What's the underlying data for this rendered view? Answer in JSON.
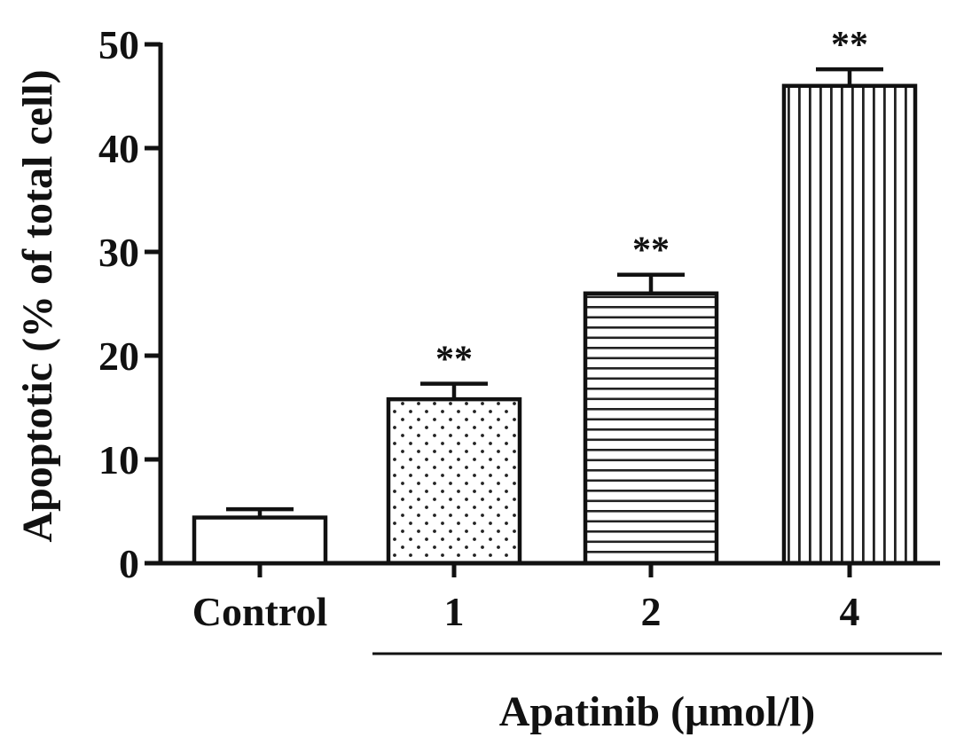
{
  "chart_data": {
    "type": "bar",
    "categories": [
      "Control",
      "1",
      "2",
      "4"
    ],
    "values": [
      4.4,
      15.8,
      26.0,
      46.0
    ],
    "errors": [
      0.8,
      1.5,
      1.8,
      1.6
    ],
    "significance": [
      "",
      "**",
      "**",
      "**"
    ],
    "fill_patterns": [
      "none",
      "dots",
      "horizontal-lines",
      "vertical-lines"
    ],
    "ylabel": "Apoptotic (% of total cell)",
    "xlabel": "",
    "group_label": "Apatinib (μmol/l)",
    "yticks": [
      "0",
      "10",
      "20",
      "30",
      "40",
      "50"
    ],
    "ylim": [
      0,
      50
    ],
    "grid": false,
    "legend": "none",
    "colors": {
      "bar_stroke": "#111111",
      "bar_fill": "#ffffff"
    }
  }
}
